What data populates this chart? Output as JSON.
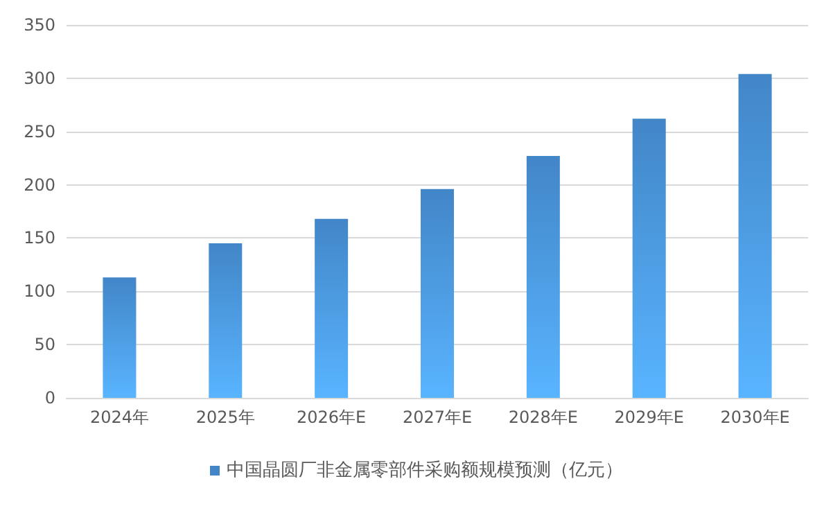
{
  "chart_data": {
    "type": "bar",
    "categories": [
      "2024年",
      "2025年",
      "2026年E",
      "2027年E",
      "2028年E",
      "2029年E",
      "2030年E"
    ],
    "series": [
      {
        "name": "中国晶圆厂非金属零部件采购额规模预测（亿元）",
        "color": "#4286c8",
        "values": [
          113,
          145,
          168,
          196,
          227,
          262,
          304
        ]
      }
    ],
    "ylim": [
      0,
      350
    ],
    "yticks": [
      0,
      50,
      100,
      150,
      200,
      250,
      300,
      350
    ],
    "grid": "y",
    "legend": "bottom"
  }
}
